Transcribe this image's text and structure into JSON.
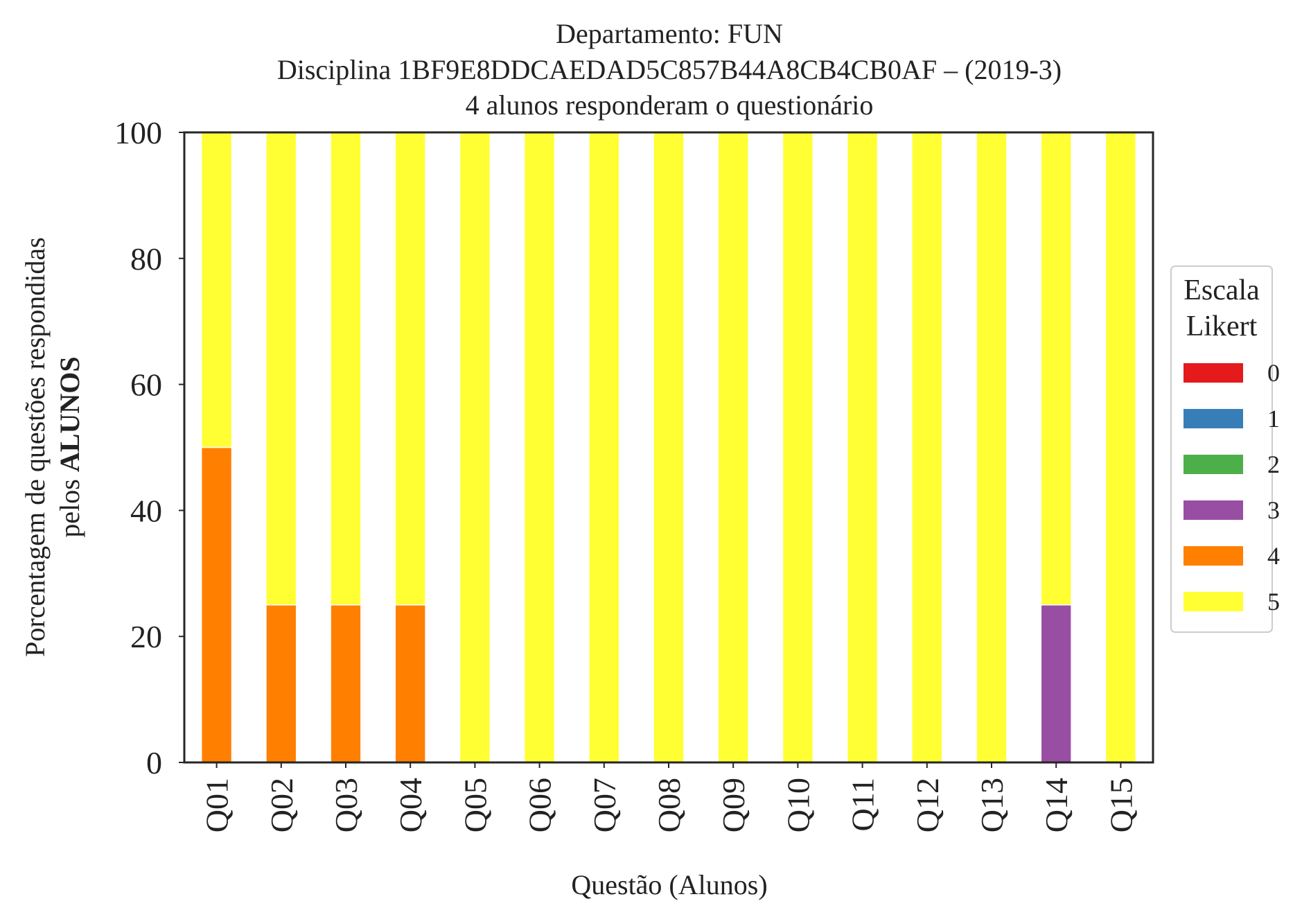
{
  "chart_data": {
    "type": "bar",
    "stacked": true,
    "title": [
      "Departamento: FUN",
      "Disciplina 1BF9E8DDCAEDAD5C857B44A8CB4CB0AF – (2019-3)",
      "4 alunos responderam o questionário"
    ],
    "xlabel": "Questão (Alunos)",
    "ylabel_line1": "Porcentagem de questões respondidas",
    "ylabel_line2_prefix": "pelos ",
    "ylabel_line2_bold": "ALUNOS",
    "ylim": [
      0,
      100
    ],
    "yticks": [
      0,
      20,
      40,
      60,
      80,
      100
    ],
    "grid": false,
    "legend": {
      "title": [
        "Escala",
        "Likert"
      ],
      "placement": "right"
    },
    "categories": [
      "Q01",
      "Q02",
      "Q03",
      "Q04",
      "Q05",
      "Q06",
      "Q07",
      "Q08",
      "Q09",
      "Q10",
      "Q11",
      "Q12",
      "Q13",
      "Q14",
      "Q15"
    ],
    "series": [
      {
        "name": "0",
        "color": "#e41a1c",
        "values": [
          0,
          0,
          0,
          0,
          0,
          0,
          0,
          0,
          0,
          0,
          0,
          0,
          0,
          0,
          0
        ]
      },
      {
        "name": "1",
        "color": "#377eb8",
        "values": [
          0,
          0,
          0,
          0,
          0,
          0,
          0,
          0,
          0,
          0,
          0,
          0,
          0,
          0,
          0
        ]
      },
      {
        "name": "2",
        "color": "#4daf4a",
        "values": [
          0,
          0,
          0,
          0,
          0,
          0,
          0,
          0,
          0,
          0,
          0,
          0,
          0,
          0,
          0
        ]
      },
      {
        "name": "3",
        "color": "#984ea3",
        "values": [
          0,
          0,
          0,
          0,
          0,
          0,
          0,
          0,
          0,
          0,
          0,
          0,
          0,
          25,
          0
        ]
      },
      {
        "name": "4",
        "color": "#ff7f00",
        "values": [
          50,
          25,
          25,
          25,
          0,
          0,
          0,
          0,
          0,
          0,
          0,
          0,
          0,
          0,
          0
        ]
      },
      {
        "name": "5",
        "color": "#ffff33",
        "values": [
          50,
          75,
          75,
          75,
          100,
          100,
          100,
          100,
          100,
          100,
          100,
          100,
          100,
          75,
          100
        ]
      }
    ]
  }
}
